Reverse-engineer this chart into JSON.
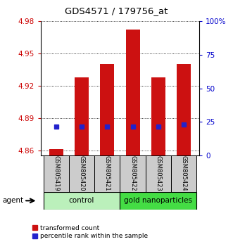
{
  "title": "GDS4571 / 179756_at",
  "samples": [
    "GSM805419",
    "GSM805420",
    "GSM805421",
    "GSM805422",
    "GSM805423",
    "GSM805424"
  ],
  "group_colors": [
    "#bbf0bb",
    "#44dd44"
  ],
  "group_labels": [
    "control",
    "gold nanoparticles"
  ],
  "red_values": [
    4.861,
    4.928,
    4.94,
    4.972,
    4.928,
    4.94
  ],
  "blue_values": [
    4.882,
    4.882,
    4.882,
    4.882,
    4.882,
    4.884
  ],
  "ymin": 4.855,
  "ymax": 4.98,
  "yticks": [
    4.86,
    4.89,
    4.92,
    4.95,
    4.98
  ],
  "y2ticks": [
    0,
    25,
    50,
    75,
    100
  ],
  "y2ticklabels": [
    "0",
    "25",
    "50",
    "75",
    "100%"
  ],
  "bar_bottom": 4.855,
  "bar_width": 0.55,
  "red_color": "#cc1111",
  "blue_color": "#2222cc",
  "left_tick_color": "#cc0000",
  "right_tick_color": "#0000cc",
  "grid_color": "#000000",
  "sample_area_color": "#cccccc",
  "legend_red_label": "transformed count",
  "legend_blue_label": "percentile rank within the sample",
  "agent_label": "agent"
}
